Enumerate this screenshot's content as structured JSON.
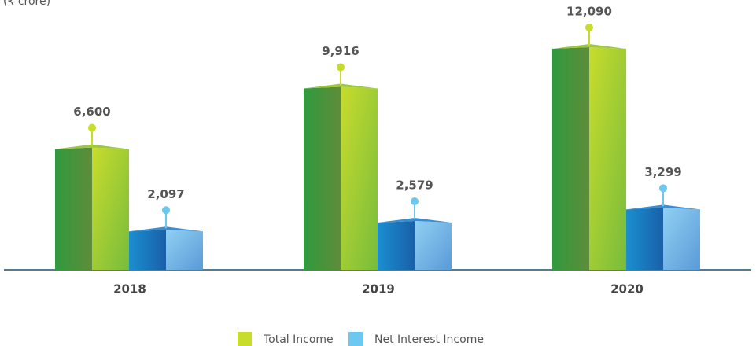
{
  "chart_data": {
    "type": "bar3d",
    "subtitle": "(₹ crore)",
    "categories": [
      "2018",
      "2019",
      "2020"
    ],
    "series": [
      {
        "name": "Total Income",
        "color": "#c8dc2c",
        "values": [
          6600,
          9916,
          12090
        ]
      },
      {
        "name": "Net Interest Income",
        "color": "#6cc8ef",
        "values": [
          2097,
          2579,
          3299
        ]
      }
    ]
  }
}
